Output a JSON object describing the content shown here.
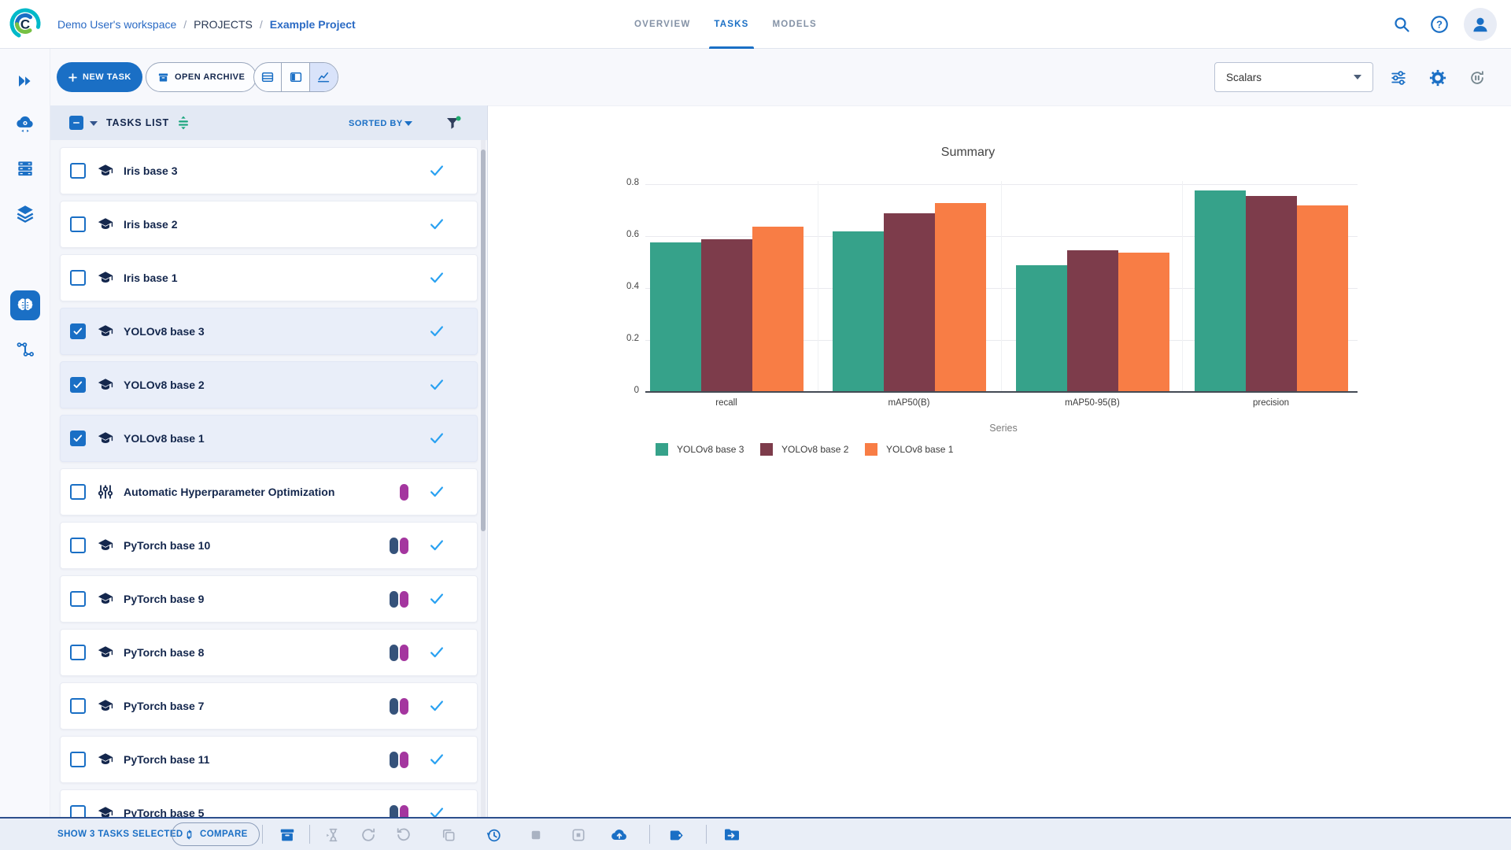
{
  "colors": {
    "primary_blue": "#1a6fc5",
    "navy_text": "#14274d",
    "link_blue": "#2a6ac4",
    "green_accent": "#18a57c",
    "status_check_blue": "#29a1f1",
    "badge_navy": "#35527a",
    "badge_magenta": "#a4369f",
    "series_teal": "#36a28a",
    "series_maroon": "#7d3c4b",
    "series_orange": "#f87d45",
    "disabled_gray": "#a9b2c2"
  },
  "header": {
    "logo": "clearml-logo",
    "breadcrumb": {
      "workspace": "Demo User's workspace",
      "sep": "/",
      "section": "PROJECTS",
      "project": "Example Project"
    },
    "tabs": [
      {
        "label": "OVERVIEW",
        "active": false
      },
      {
        "label": "TASKS",
        "active": true
      },
      {
        "label": "MODELS",
        "active": false
      }
    ],
    "icons": [
      "search-icon",
      "help-icon",
      "user-avatar"
    ]
  },
  "sidebar": {
    "items": [
      "expand-icon",
      "apps-cloud-icon",
      "workers-queues-icon",
      "datasets-icon",
      "projects-brain-icon",
      "pipelines-icon"
    ],
    "active_item": "projects-brain-icon"
  },
  "toolbar": {
    "new_task_label": "NEW TASK",
    "open_archive_label": "OPEN ARCHIVE",
    "view_toggles": [
      "table-view-icon",
      "split-view-icon",
      "chart-view-icon"
    ],
    "active_view": "chart-view-icon",
    "metric_selector_value": "Scalars",
    "right_icons": [
      "tune-filters-icon",
      "settings-gear-icon",
      "auto-refresh-icon"
    ]
  },
  "tasks_panel": {
    "title": "TASKS LIST",
    "sorted_by_label": "SORTED BY",
    "rows": [
      {
        "name": "Iris base 3",
        "type": "training",
        "selected": false,
        "badges": []
      },
      {
        "name": "Iris base 2",
        "type": "training",
        "selected": false,
        "badges": []
      },
      {
        "name": "Iris base 1",
        "type": "training",
        "selected": false,
        "badges": []
      },
      {
        "name": "YOLOv8 base 3",
        "type": "training",
        "selected": true,
        "badges": []
      },
      {
        "name": "YOLOv8 base 2",
        "type": "training",
        "selected": true,
        "badges": []
      },
      {
        "name": "YOLOv8 base 1",
        "type": "training",
        "selected": true,
        "badges": []
      },
      {
        "name": "Automatic Hyperparameter Optimization",
        "type": "optimizer",
        "selected": false,
        "badges": [
          "magenta"
        ]
      },
      {
        "name": "PyTorch base 10",
        "type": "training",
        "selected": false,
        "badges": [
          "navy",
          "magenta"
        ]
      },
      {
        "name": "PyTorch base 9",
        "type": "training",
        "selected": false,
        "badges": [
          "navy",
          "magenta"
        ]
      },
      {
        "name": "PyTorch base 8",
        "type": "training",
        "selected": false,
        "badges": [
          "navy",
          "magenta"
        ]
      },
      {
        "name": "PyTorch base 7",
        "type": "training",
        "selected": false,
        "badges": [
          "navy",
          "magenta"
        ]
      },
      {
        "name": "PyTorch base 11",
        "type": "training",
        "selected": false,
        "badges": [
          "navy",
          "magenta"
        ]
      },
      {
        "name": "PyTorch base 5",
        "type": "training",
        "selected": false,
        "badges": [
          "navy",
          "magenta"
        ]
      }
    ]
  },
  "chart_data": {
    "type": "bar",
    "title": "Summary",
    "legend_title": "Series",
    "categories": [
      "recall",
      "mAP50(B)",
      "mAP50-95(B)",
      "precision"
    ],
    "series": [
      {
        "name": "YOLOv8 base 3",
        "color": "#36a28a",
        "values": [
          0.576,
          0.618,
          0.488,
          0.776
        ]
      },
      {
        "name": "YOLOv8 base 2",
        "color": "#7d3c4b",
        "values": [
          0.588,
          0.688,
          0.545,
          0.755
        ]
      },
      {
        "name": "YOLOv8 base 1",
        "color": "#f87d45",
        "values": [
          0.636,
          0.727,
          0.536,
          0.718
        ]
      }
    ],
    "ylim": [
      0,
      0.8
    ],
    "yticks": [
      0,
      0.2,
      0.4,
      0.6,
      0.8
    ],
    "grid": true,
    "legend_position": "bottom"
  },
  "footer": {
    "selected_label": "SHOW 3 TASKS SELECTED",
    "compare_label": "COMPARE",
    "action_icons": [
      "archive-icon",
      "enqueue-hourglass-icon",
      "refresh-icon",
      "reset-icon",
      "clone-icon",
      "history-icon",
      "stop-icon",
      "abort-all-icon",
      "publish-cloud-icon",
      "tags-icon",
      "move-to-project-icon"
    ]
  }
}
